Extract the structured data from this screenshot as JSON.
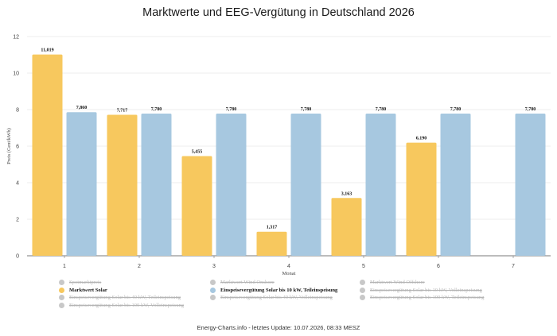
{
  "title": "Marktwerte und EEG-Vergütung in Deutschland 2026",
  "footer": "Energy-Charts.info - letztes Update: 10.07.2026, 08:33 MESZ",
  "chart_data": {
    "type": "bar",
    "title": "Marktwerte und EEG-Vergütung in Deutschland 2026",
    "xlabel": "Monat",
    "ylabel": "Preis (Cent/kWh)",
    "categories": [
      "1",
      "2",
      "3",
      "4",
      "5",
      "6",
      "7"
    ],
    "ylim": [
      0,
      12
    ],
    "yticks": [
      0,
      2,
      4,
      6,
      8,
      10,
      12
    ],
    "grid": true,
    "legend_position": "bottom",
    "series": [
      {
        "name": "Marktwert Solar",
        "color": "#f7c85e",
        "values": [
          11.019,
          7.717,
          5.455,
          1.317,
          3.163,
          6.19,
          null
        ],
        "labels": [
          "11,019",
          "7,717",
          "5,455",
          "1,317",
          "3,163",
          "6,190",
          null
        ]
      },
      {
        "name": "Einspeisevergütung Solar bis 10 kW, Teileinspeisung",
        "color": "#a7c8e0",
        "values": [
          7.86,
          7.78,
          7.78,
          7.78,
          7.78,
          7.78,
          7.78
        ],
        "labels": [
          "7,860",
          "7,780",
          "7,780",
          "7,780",
          "7,780",
          "7,780",
          "7,780"
        ]
      }
    ]
  },
  "legend": [
    {
      "label": "Spotmarktpreis",
      "state": "hidden",
      "color": "#c8c8c8"
    },
    {
      "label": "Marktwert Wind Onshore",
      "state": "hidden",
      "color": "#c8c8c8"
    },
    {
      "label": "Marktwert Wind Offshore",
      "state": "hidden",
      "color": "#c8c8c8"
    },
    {
      "label": "Marktwert Solar",
      "state": "active",
      "color": "#f7c85e"
    },
    {
      "label": "Einspeisevergütung Solar bis 10 kW, Teileinspeisung",
      "state": "active",
      "color": "#a7c8e0"
    },
    {
      "label": "Einspeisevergütung Solar bis 10 kW, Volleinspeisung",
      "state": "hidden",
      "color": "#c8c8c8"
    },
    {
      "label": "Einspeisevergütung Solar bis 40 kW, Teileinspeisung",
      "state": "hidden",
      "color": "#c8c8c8"
    },
    {
      "label": "Einspeisevergütung Solar bis 40 kW, Volleinspeisung",
      "state": "hidden",
      "color": "#c8c8c8"
    },
    {
      "label": "Einspeisevergütung Solar bis 100 kW, Teileinspeisung",
      "state": "hidden",
      "color": "#c8c8c8"
    },
    {
      "label": "Einspeisevergütung Solar bis 100 kW, Volleinspeisung",
      "state": "hidden",
      "color": "#c8c8c8"
    }
  ]
}
